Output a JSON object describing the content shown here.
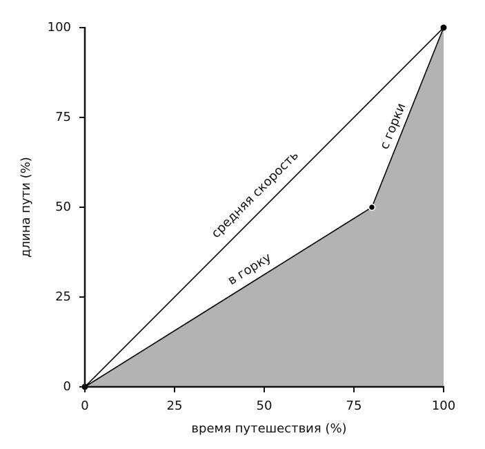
{
  "chart_data": {
    "type": "line",
    "x_label": "время путешествия (%)",
    "y_label": "длина пути (%)",
    "x": [
      0,
      80,
      100
    ],
    "series": [
      {
        "name": "средняя скорость",
        "color": "#000000",
        "values": [
          0,
          80,
          100
        ]
      },
      {
        "color": "#000000",
        "fill": "#b3b3b3",
        "values": [
          0,
          50,
          100
        ]
      }
    ],
    "annotations": [
      "в горку",
      "с горки"
    ],
    "xlim": [
      0,
      100
    ],
    "ylim": [
      0,
      100
    ],
    "xticks": [
      0,
      25,
      50,
      75,
      100
    ],
    "yticks": [
      0,
      25,
      50,
      75,
      100
    ],
    "grid": false
  }
}
